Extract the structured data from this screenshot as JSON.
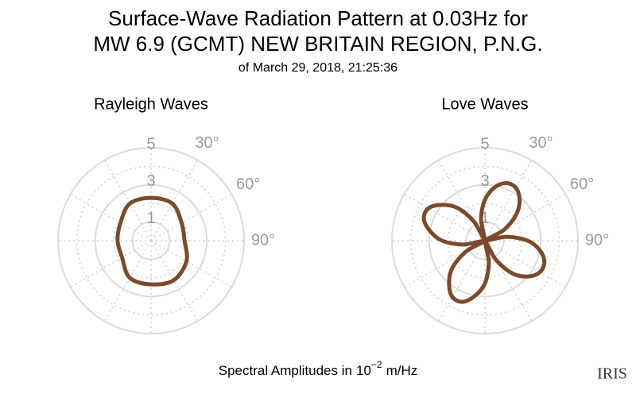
{
  "header": {
    "title": [
      "Surface-Wave Radiation Pattern at 0.03Hz for",
      "MW 6.9 (GCMT) NEW BRITAIN REGION, P.N.G."
    ],
    "subtitle": "of March 29, 2018, 21:25:36"
  },
  "footer": {
    "text": "Spectral Amplitudes in",
    "base": "10",
    "exponent": "−2",
    "unit": "m/Hz"
  },
  "logo": "IRIS",
  "chart_data": [
    {
      "type": "polar",
      "title": "Rayleigh Waves",
      "color": "#7b4a2c",
      "theta": [
        0,
        30,
        60,
        90,
        120,
        150,
        180,
        210,
        240,
        270,
        300,
        330
      ],
      "values": [
        2.3,
        2.3,
        1.9,
        1.8,
        2.2,
        2.45,
        2.35,
        2.3,
        1.8,
        1.8,
        1.9,
        2.3
      ],
      "rlim": [
        0,
        5
      ],
      "rticks": [
        1,
        3,
        5
      ],
      "rminor": [
        2,
        4
      ],
      "thetagrid": [
        0,
        30,
        60,
        90,
        120,
        150,
        180,
        210,
        240,
        270,
        300,
        330
      ],
      "thetaticks": [
        {
          "value": 30,
          "label": "30°"
        },
        {
          "value": 60,
          "label": "60°"
        },
        {
          "value": 90,
          "label": "90°"
        }
      ]
    },
    {
      "type": "polar",
      "title": "Love Waves",
      "color": "#7b4a2c",
      "theta": [
        0,
        10,
        20,
        30,
        40,
        50,
        60,
        70,
        80,
        90,
        100,
        110,
        120,
        130,
        140,
        150,
        160,
        170,
        180,
        190,
        200,
        210,
        220,
        230,
        240,
        250,
        260,
        270,
        280,
        290,
        300,
        310,
        320,
        330,
        340,
        350
      ],
      "values": [
        2.2,
        2.9,
        3.3,
        3.3,
        2.9,
        2.2,
        1.2,
        0.1,
        1.2,
        2.3,
        3.0,
        3.4,
        3.4,
        3.0,
        2.3,
        1.2,
        0.1,
        1.2,
        2.3,
        3.0,
        3.5,
        3.5,
        3.0,
        2.3,
        1.2,
        0.1,
        1.2,
        2.3,
        3.0,
        3.5,
        3.5,
        3.0,
        2.3,
        1.2,
        0.1,
        1.2
      ],
      "rlim": [
        0,
        5
      ],
      "rticks": [
        1,
        3,
        5
      ],
      "rminor": [
        2,
        4
      ],
      "thetagrid": [
        0,
        30,
        60,
        90,
        120,
        150,
        180,
        210,
        240,
        270,
        300,
        330
      ],
      "thetaticks": [
        {
          "value": 30,
          "label": "30°"
        },
        {
          "value": 60,
          "label": "60°"
        },
        {
          "value": 90,
          "label": "90°"
        }
      ]
    }
  ]
}
